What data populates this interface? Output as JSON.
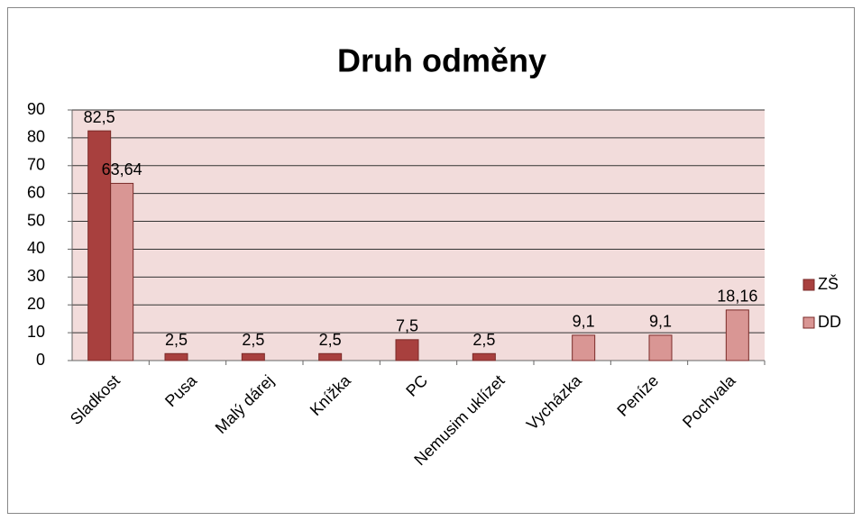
{
  "chart_data": {
    "type": "bar",
    "title": "Druh odměny",
    "categories": [
      "Sladkost",
      "Pusa",
      "Malý dárej",
      "Knížka",
      "PC",
      "Nemusim uklízet",
      "Vycházka",
      "Peníze",
      "Pochvala"
    ],
    "series": [
      {
        "name": "ZŠ",
        "color": "#a8403e",
        "values": [
          82.5,
          2.5,
          2.5,
          2.5,
          7.5,
          2.5,
          null,
          null,
          null
        ],
        "value_labels": [
          "82,5",
          "2,5",
          "2,5",
          "2,5",
          "7,5",
          "2,5",
          null,
          null,
          null
        ]
      },
      {
        "name": "DD",
        "color": "#d99694",
        "values": [
          63.64,
          null,
          null,
          null,
          null,
          null,
          9.1,
          9.1,
          18.16
        ],
        "value_labels": [
          "63,64",
          null,
          null,
          null,
          null,
          null,
          "9,1",
          "9,1",
          "18,16"
        ]
      }
    ],
    "ylim": [
      0,
      90
    ],
    "yticks": [
      0,
      10,
      20,
      30,
      40,
      50,
      60,
      70,
      80,
      90
    ],
    "grid": true,
    "legend": "right"
  }
}
